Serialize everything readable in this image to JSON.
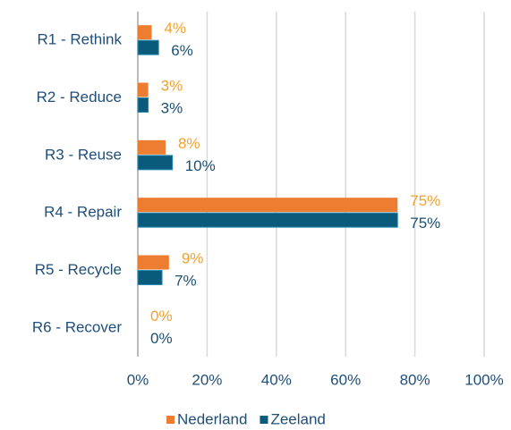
{
  "chart_data": {
    "type": "bar",
    "orientation": "horizontal",
    "categories": [
      "R1 - Rethink",
      "R2 - Reduce",
      "R3 - Reuse",
      "R4 - Repair",
      "R5 - Recycle",
      "R6 - Recover"
    ],
    "series": [
      {
        "name": "Nederland",
        "color": "#ed7d31",
        "label_color": "#f2a12e",
        "values": [
          4,
          3,
          8,
          75,
          9,
          0
        ],
        "value_labels": [
          "4%",
          "3%",
          "8%",
          "75%",
          "9%",
          "0%"
        ]
      },
      {
        "name": "Zeeland",
        "color": "#0a5a7c",
        "label_color": "#1b5072",
        "values": [
          6,
          3,
          10,
          75,
          7,
          0
        ],
        "value_labels": [
          "6%",
          "3%",
          "10%",
          "75%",
          "7%",
          "0%"
        ]
      }
    ],
    "xlim": [
      0,
      100
    ],
    "xticks": [
      {
        "value": 0,
        "label": "0%"
      },
      {
        "value": 20,
        "label": "20%"
      },
      {
        "value": 40,
        "label": "40%"
      },
      {
        "value": 60,
        "label": "60%"
      },
      {
        "value": 80,
        "label": "80%"
      },
      {
        "value": 100,
        "label": "100%"
      }
    ],
    "grid": true,
    "legend": "bottom"
  }
}
